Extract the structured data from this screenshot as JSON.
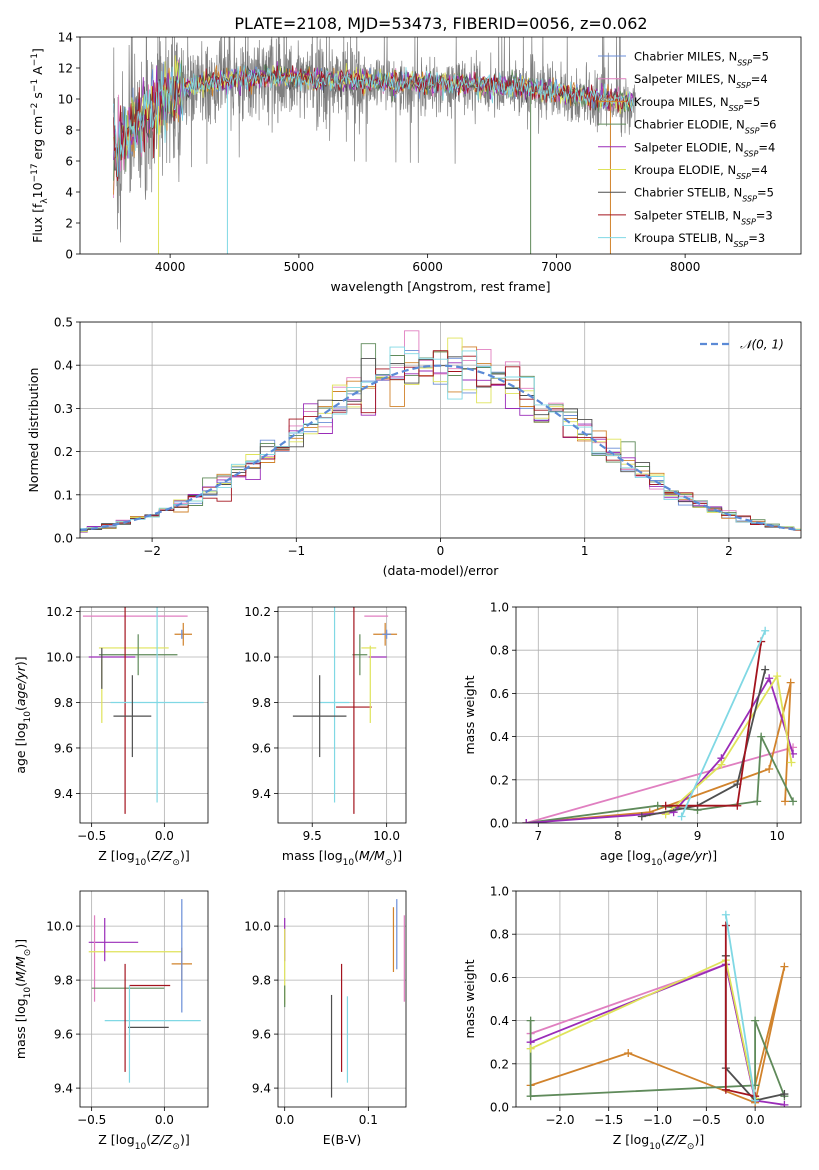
{
  "figure_title": "PLATE=2108, MJD=53473, FIBERID=0056, z=0.062",
  "colors": {
    "Chabrier MILES": "#6a8ed8",
    "Salpeter MILES": "#e07fc0",
    "Kroupa MILES": "#d1832c",
    "Chabrier ELODIE": "#5f8a5a",
    "Salpeter ELODIE": "#9a2cb8",
    "Kroupa ELODIE": "#dfe35a",
    "Chabrier STELIB": "#4f4f4f",
    "Salpeter STELIB": "#a3141e",
    "Kroupa STELIB": "#80d8e4",
    "data": "#7f7f7f",
    "normal": "#5b8ad6"
  },
  "chart_data": [
    {
      "type": "line",
      "xlabel": "wavelength [Angstrom, rest frame]",
      "ylabel": "Flux [f",
      "xlim": [
        3300,
        8900
      ],
      "ylim": [
        0,
        14
      ],
      "xticks": [
        "4000",
        "5000",
        "6000",
        "7000",
        "8000"
      ],
      "yticks": [
        "0",
        "2",
        "4",
        "6",
        "8",
        "10",
        "12",
        "14"
      ],
      "legend_position": "top-right",
      "legend": [
        {
          "name": "Chabrier MILES",
          "nssp": "5"
        },
        {
          "name": "Salpeter MILES",
          "nssp": "4"
        },
        {
          "name": "Kroupa MILES",
          "nssp": "5"
        },
        {
          "name": "Chabrier ELODIE",
          "nssp": "6"
        },
        {
          "name": "Salpeter ELODIE",
          "nssp": "4"
        },
        {
          "name": "Kroupa ELODIE",
          "nssp": "4"
        },
        {
          "name": "Chabrier STELIB",
          "nssp": "5"
        },
        {
          "name": "Salpeter STELIB",
          "nssp": "3"
        },
        {
          "name": "Kroupa STELIB",
          "nssp": "3"
        }
      ],
      "data_wavelength_range": [
        3560,
        7620
      ],
      "continuum": [
        [
          3560,
          6.5
        ],
        [
          3700,
          8.0
        ],
        [
          3900,
          9.5
        ],
        [
          4100,
          10.5
        ],
        [
          4400,
          11.0
        ],
        [
          4800,
          11.3
        ],
        [
          5300,
          11.0
        ],
        [
          5800,
          10.9
        ],
        [
          6300,
          10.8
        ],
        [
          6800,
          10.5
        ],
        [
          7200,
          10.0
        ],
        [
          7600,
          9.6
        ]
      ]
    },
    {
      "type": "bar",
      "xlabel": "(data-model)/error",
      "ylabel": "Normed distribution",
      "xlim": [
        -2.5,
        2.5
      ],
      "ylim": [
        0,
        0.5
      ],
      "xticks": [
        "−2",
        "−1",
        "0",
        "1",
        "2"
      ],
      "yticks": [
        "0.0",
        "0.1",
        "0.2",
        "0.3",
        "0.4",
        "0.5"
      ],
      "bin_width": 0.1,
      "legend_position": "top-right",
      "legend_label": "𝒩(0, 1)"
    },
    {
      "type": "scatter",
      "xlabel": "Z [log",
      "ylabel": "age  [log",
      "xlim": [
        -0.58,
        0.3
      ],
      "ylim": [
        9.27,
        10.22
      ],
      "xticks": [
        "−0.5",
        "0.0"
      ],
      "yticks": [
        "9.4",
        "9.6",
        "9.8",
        "10.0",
        "10.2"
      ],
      "points": [
        {
          "model": "Salpeter MILES",
          "x": -0.2,
          "y": 10.18,
          "xerr": 0.36,
          "yerr": 0.0
        },
        {
          "model": "Kroupa MILES",
          "x": 0.13,
          "y": 10.1,
          "xerr": 0.06,
          "yerr": 0.05
        },
        {
          "model": "Kroupa ELODIE",
          "x": -0.21,
          "y": 10.04,
          "xerr": 0.24,
          "yerr": 0.0
        },
        {
          "model": "Chabrier MILES",
          "x": 0.12,
          "y": 10.1,
          "xerr": 0.0,
          "yerr": 0.02
        },
        {
          "model": "Chabrier ELODIE",
          "x": -0.18,
          "y": 10.01,
          "xerr": 0.27,
          "yerr": 0.09
        },
        {
          "model": "Salpeter ELODIE",
          "x": -0.36,
          "y": 10.0,
          "xerr": 0.16,
          "yerr": 0.0
        },
        {
          "model": "Salpeter STELIB",
          "x": -0.27,
          "y": 9.78,
          "xerr": 0.0,
          "yerr": 0.47
        },
        {
          "model": "Kroupa STELIB",
          "x": -0.05,
          "y": 9.8,
          "xerr": 0.32,
          "yerr": 0.44
        },
        {
          "model": "Chabrier STELIB",
          "x": -0.22,
          "y": 9.74,
          "xerr": 0.13,
          "yerr": 0.18
        },
        {
          "model": "Kroupa ELODIE",
          "x": -0.43,
          "y": 9.85,
          "xerr": 0.0,
          "yerr": 0.14
        },
        {
          "model": "Chabrier STELIB",
          "x": -0.43,
          "y": 9.95,
          "xerr": 0.0,
          "yerr": 0.09
        }
      ]
    },
    {
      "type": "scatter",
      "xlabel": "mass [log",
      "ylabel": "",
      "xlim": [
        9.27,
        10.13
      ],
      "ylim": [
        9.27,
        10.22
      ],
      "xticks": [
        "9.5",
        "10.0"
      ],
      "yticks": [
        "9.4",
        "9.6",
        "9.8",
        "10.0",
        "10.2"
      ],
      "points": [
        {
          "model": "Salpeter MILES",
          "x": 9.93,
          "y": 10.18,
          "xerr": 0.08,
          "yerr": 0.0
        },
        {
          "model": "Kroupa MILES",
          "x": 9.99,
          "y": 10.1,
          "xerr": 0.08,
          "yerr": 0.05
        },
        {
          "model": "Kroupa ELODIE",
          "x": 9.88,
          "y": 10.04,
          "xerr": 0.05,
          "yerr": 0.0
        },
        {
          "model": "Chabrier MILES",
          "x": 10.0,
          "y": 10.1,
          "xerr": 0.03,
          "yerr": 0.02
        },
        {
          "model": "Chabrier ELODIE",
          "x": 9.82,
          "y": 10.01,
          "xerr": 0.05,
          "yerr": 0.09
        },
        {
          "model": "Salpeter ELODIE",
          "x": 9.94,
          "y": 10.0,
          "xerr": 0.06,
          "yerr": 0.0
        },
        {
          "model": "Salpeter STELIB",
          "x": 9.78,
          "y": 9.78,
          "xerr": 0.12,
          "yerr": 0.47
        },
        {
          "model": "Kroupa STELIB",
          "x": 9.65,
          "y": 9.8,
          "xerr": 0.1,
          "yerr": 0.44
        },
        {
          "model": "Chabrier STELIB",
          "x": 9.55,
          "y": 9.74,
          "xerr": 0.18,
          "yerr": 0.18
        },
        {
          "model": "Kroupa ELODIE",
          "x": 9.89,
          "y": 9.88,
          "xerr": 0.0,
          "yerr": 0.17
        }
      ]
    },
    {
      "type": "line",
      "xlabel": "age  [log",
      "ylabel": "mass weight",
      "xlim": [
        6.72,
        10.3
      ],
      "ylim": [
        0,
        1.0
      ],
      "xticks": [
        "7",
        "8",
        "9",
        "10"
      ],
      "yticks": [
        "0.0",
        "0.2",
        "0.4",
        "0.6",
        "0.8",
        "1.0"
      ],
      "grid": true
    },
    {
      "type": "scatter",
      "xlabel": "Z [log",
      "ylabel": "mass [log",
      "xlim": [
        -0.58,
        0.3
      ],
      "ylim": [
        9.33,
        10.13
      ],
      "xticks": [
        "−0.5",
        "0.0"
      ],
      "yticks": [
        "9.4",
        "9.6",
        "9.8",
        "10.0"
      ],
      "points": [
        {
          "model": "Salpeter ELODIE",
          "x": -0.35,
          "y": 9.94,
          "xerr": 0.17,
          "yerr": 0.0
        },
        {
          "model": "Salpeter MILES",
          "x": -0.48,
          "y": 9.88,
          "xerr": 0.0,
          "yerr": 0.16
        },
        {
          "model": "Kroupa ELODIE",
          "x": -0.2,
          "y": 9.905,
          "xerr": 0.32,
          "yerr": 0.0
        },
        {
          "model": "Kroupa MILES",
          "x": 0.12,
          "y": 9.86,
          "xerr": 0.07,
          "yerr": 0.06
        },
        {
          "model": "Chabrier MILES",
          "x": 0.12,
          "y": 9.89,
          "xerr": 0.0,
          "yerr": 0.21
        },
        {
          "model": "Salpeter STELIB",
          "x": -0.1,
          "y": 9.78,
          "xerr": 0.14,
          "yerr": 0.0
        },
        {
          "model": "Chabrier ELODIE",
          "x": -0.25,
          "y": 9.77,
          "xerr": 0.25,
          "yerr": 0.0
        },
        {
          "model": "Kroupa STELIB",
          "x": -0.08,
          "y": 9.65,
          "xerr": 0.33,
          "yerr": 0.0
        },
        {
          "model": "Chabrier STELIB",
          "x": -0.11,
          "y": 9.625,
          "xerr": 0.14,
          "yerr": 0.0
        },
        {
          "model": "Salpeter STELIB",
          "x": -0.27,
          "y": 9.66,
          "xerr": 0.0,
          "yerr": 0.2
        },
        {
          "model": "Kroupa STELIB",
          "x": -0.24,
          "y": 9.6,
          "xerr": 0.0,
          "yerr": 0.18
        },
        {
          "model": "Salpeter ELODIE",
          "x": -0.41,
          "y": 9.95,
          "xerr": 0.0,
          "yerr": 0.08
        }
      ]
    },
    {
      "type": "scatter",
      "xlabel": "E(B-V)",
      "ylabel": "",
      "xlim": [
        -0.008,
        0.145
      ],
      "ylim": [
        9.33,
        10.13
      ],
      "xticks": [
        "0.0",
        "0.1"
      ],
      "yticks": [
        "9.4",
        "9.6",
        "9.8",
        "10.0"
      ],
      "points": [
        {
          "model": "Salpeter ELODIE",
          "x": 0.0,
          "y": 9.95,
          "xerr": 0.0,
          "yerr": 0.08
        },
        {
          "model": "Kroupa ELODIE",
          "x": 0.0,
          "y": 9.85,
          "xerr": 0.0,
          "yerr": 0.14
        },
        {
          "model": "Chabrier ELODIE",
          "x": 0.0,
          "y": 9.74,
          "xerr": 0.0,
          "yerr": 0.04
        },
        {
          "model": "Chabrier STELIB",
          "x": 0.056,
          "y": 9.555,
          "xerr": 0.0,
          "yerr": 0.19
        },
        {
          "model": "Salpeter STELIB",
          "x": 0.068,
          "y": 9.66,
          "xerr": 0.0,
          "yerr": 0.2
        },
        {
          "model": "Kroupa STELIB",
          "x": 0.075,
          "y": 9.58,
          "xerr": 0.0,
          "yerr": 0.16
        },
        {
          "model": "Kroupa MILES",
          "x": 0.13,
          "y": 9.95,
          "xerr": 0.0,
          "yerr": 0.12
        },
        {
          "model": "Chabrier MILES",
          "x": 0.134,
          "y": 9.97,
          "xerr": 0.0,
          "yerr": 0.13
        },
        {
          "model": "Salpeter MILES",
          "x": 0.143,
          "y": 9.88,
          "xerr": 0.0,
          "yerr": 0.16
        }
      ]
    },
    {
      "type": "line",
      "xlabel": "Z [log",
      "ylabel": "mass weight",
      "xlim": [
        -2.45,
        0.47
      ],
      "ylim": [
        0,
        1.0
      ],
      "xticks": [
        "−2.0",
        "−1.5",
        "−1.0",
        "−0.5",
        "0.0"
      ],
      "yticks": [
        "0.0",
        "0.2",
        "0.4",
        "0.6",
        "0.8",
        "1.0"
      ],
      "grid": true
    }
  ],
  "weights_age": [
    {
      "model": "Salpeter MILES",
      "points": [
        [
          6.85,
          0.0
        ],
        [
          10.2,
          0.35
        ]
      ]
    },
    {
      "model": "Kroupa MILES",
      "points": [
        [
          6.85,
          0.0
        ],
        [
          8.4,
          0.05
        ],
        [
          9.9,
          0.25
        ],
        [
          10.17,
          0.65
        ],
        [
          10.1,
          0.1
        ]
      ]
    },
    {
      "model": "Chabrier ELODIE",
      "points": [
        [
          6.85,
          0.0
        ],
        [
          8.5,
          0.08
        ],
        [
          9.0,
          0.06
        ],
        [
          9.75,
          0.1
        ],
        [
          9.8,
          0.4
        ],
        [
          10.2,
          0.1
        ]
      ]
    },
    {
      "model": "Salpeter ELODIE",
      "points": [
        [
          6.85,
          0.0
        ],
        [
          8.7,
          0.05
        ],
        [
          9.3,
          0.3
        ],
        [
          9.9,
          0.67
        ],
        [
          10.2,
          0.32
        ]
      ]
    },
    {
      "model": "Kroupa ELODIE",
      "points": [
        [
          8.6,
          0.04
        ],
        [
          9.3,
          0.27
        ],
        [
          10.0,
          0.68
        ],
        [
          10.18,
          0.28
        ]
      ]
    },
    {
      "model": "Chabrier STELIB",
      "points": [
        [
          8.3,
          0.03
        ],
        [
          9.0,
          0.08
        ],
        [
          9.5,
          0.18
        ],
        [
          9.85,
          0.71
        ]
      ]
    },
    {
      "model": "Salpeter STELIB",
      "points": [
        [
          8.6,
          0.08
        ],
        [
          9.5,
          0.08
        ],
        [
          9.8,
          0.84
        ]
      ]
    },
    {
      "model": "Kroupa STELIB",
      "points": [
        [
          8.8,
          0.03
        ],
        [
          9.85,
          0.89
        ]
      ]
    }
  ],
  "weights_z": [
    {
      "model": "Salpeter MILES",
      "points": [
        [
          -2.3,
          0.34
        ],
        [
          -0.3,
          0.66
        ],
        [
          0.0,
          0.03
        ]
      ]
    },
    {
      "model": "Kroupa MILES",
      "points": [
        [
          -2.3,
          0.1
        ],
        [
          -1.3,
          0.25
        ],
        [
          0.0,
          0.02
        ],
        [
          0.3,
          0.65
        ],
        [
          0.0,
          0.1
        ]
      ]
    },
    {
      "model": "Chabrier ELODIE",
      "points": [
        [
          -2.3,
          0.4
        ],
        [
          -2.3,
          0.05
        ],
        [
          0.0,
          0.1
        ],
        [
          0.0,
          0.4
        ],
        [
          0.3,
          0.05
        ]
      ]
    },
    {
      "model": "Salpeter ELODIE",
      "points": [
        [
          -2.3,
          0.3
        ],
        [
          -0.3,
          0.66
        ],
        [
          0.0,
          0.03
        ],
        [
          0.3,
          0.01
        ]
      ]
    },
    {
      "model": "Kroupa ELODIE",
      "points": [
        [
          -2.3,
          0.27
        ],
        [
          -0.3,
          0.68
        ],
        [
          0.0,
          0.04
        ]
      ]
    },
    {
      "model": "Chabrier STELIB",
      "points": [
        [
          -0.3,
          0.7
        ],
        [
          -0.3,
          0.18
        ],
        [
          0.0,
          0.03
        ],
        [
          0.3,
          0.06
        ]
      ]
    },
    {
      "model": "Salpeter STELIB",
      "points": [
        [
          -0.3,
          0.84
        ],
        [
          -0.3,
          0.08
        ],
        [
          0.0,
          0.05
        ]
      ]
    },
    {
      "model": "Kroupa STELIB",
      "points": [
        [
          -0.3,
          0.89
        ],
        [
          0.0,
          0.03
        ]
      ]
    }
  ]
}
